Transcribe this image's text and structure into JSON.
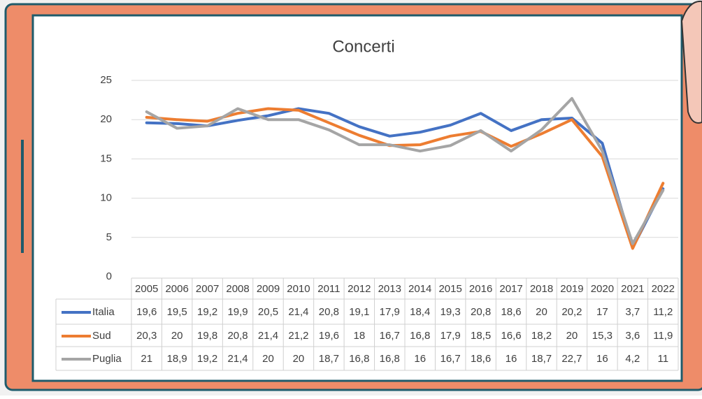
{
  "chart_data": {
    "type": "line",
    "title": "Concerti",
    "categories": [
      "2005",
      "2006",
      "2007",
      "2008",
      "2009",
      "2010",
      "2011",
      "2012",
      "2013",
      "2014",
      "2015",
      "2016",
      "2017",
      "2018",
      "2019",
      "2020",
      "2021",
      "2022"
    ],
    "series": [
      {
        "name": "Italia",
        "color": "#4472c4",
        "values": [
          19.6,
          19.5,
          19.2,
          19.9,
          20.5,
          21.4,
          20.8,
          19.1,
          17.9,
          18.4,
          19.3,
          20.8,
          18.6,
          20,
          20.2,
          17,
          3.7,
          11.2
        ],
        "value_labels": [
          "19,6",
          "19,5",
          "19,2",
          "19,9",
          "20,5",
          "21,4",
          "20,8",
          "19,1",
          "17,9",
          "18,4",
          "19,3",
          "20,8",
          "18,6",
          "20",
          "20,2",
          "17",
          "3,7",
          "11,2"
        ]
      },
      {
        "name": "Sud",
        "color": "#ed7d31",
        "values": [
          20.3,
          20,
          19.8,
          20.8,
          21.4,
          21.2,
          19.6,
          18,
          16.7,
          16.8,
          17.9,
          18.5,
          16.6,
          18.2,
          20,
          15.3,
          3.6,
          11.9
        ],
        "value_labels": [
          "20,3",
          "20",
          "19,8",
          "20,8",
          "21,4",
          "21,2",
          "19,6",
          "18",
          "16,7",
          "16,8",
          "17,9",
          "18,5",
          "16,6",
          "18,2",
          "20",
          "15,3",
          "3,6",
          "11,9"
        ]
      },
      {
        "name": "Puglia",
        "color": "#a5a5a5",
        "values": [
          21,
          18.9,
          19.2,
          21.4,
          20,
          20,
          18.7,
          16.8,
          16.8,
          16,
          16.7,
          18.6,
          16,
          18.7,
          22.7,
          16,
          4.2,
          11
        ],
        "value_labels": [
          "21",
          "18,9",
          "19,2",
          "21,4",
          "20",
          "20",
          "18,7",
          "16,8",
          "16,8",
          "16",
          "16,7",
          "18,6",
          "16",
          "18,7",
          "22,7",
          "16",
          "4,2",
          "11"
        ]
      }
    ],
    "ylim": [
      0,
      25
    ],
    "yticks": [
      0,
      5,
      10,
      15,
      20,
      25
    ],
    "grid": true
  }
}
